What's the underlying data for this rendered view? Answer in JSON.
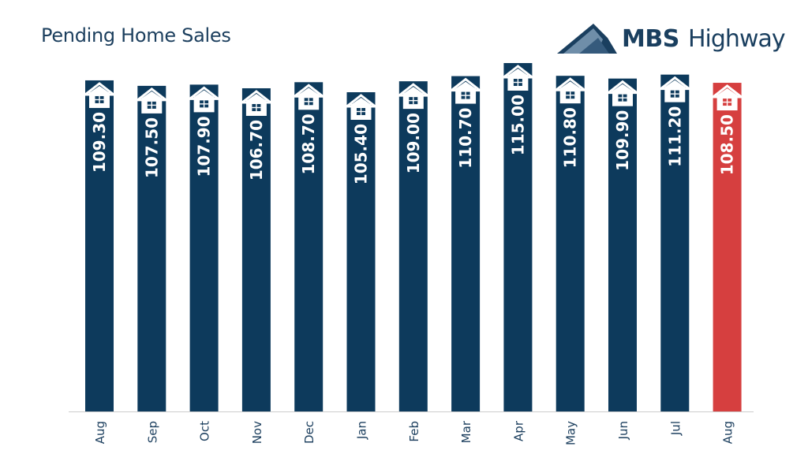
{
  "title": "Pending Home Sales",
  "brand": {
    "name_bold": "MBS",
    "name_regular": "Highway",
    "registered_mark": "®",
    "color": "#1a3f5f"
  },
  "colors": {
    "bar": "#0d3a5c",
    "bar_highlight": "#d63f3f",
    "axis": "#cccccc",
    "bar_label": "#ffffff",
    "tick_label": "#1c3f5e"
  },
  "chart_data": {
    "type": "bar",
    "categories": [
      "Aug",
      "Sep",
      "Oct",
      "Nov",
      "Dec",
      "Jan",
      "Feb",
      "Mar",
      "Apr",
      "May",
      "Jun",
      "Jul",
      "Aug"
    ],
    "values": [
      109.3,
      107.5,
      107.9,
      106.7,
      108.7,
      105.4,
      109.0,
      110.7,
      115.0,
      110.8,
      109.9,
      111.2,
      108.5
    ],
    "labels": [
      "109.30",
      "107.50",
      "107.90",
      "106.70",
      "108.70",
      "105.40",
      "109.00",
      "110.70",
      "115.00",
      "110.80",
      "109.90",
      "111.20",
      "108.50"
    ],
    "highlight_index": 12,
    "bar_icon": "house-icon",
    "xlabel": "",
    "ylabel": "",
    "grid": false,
    "legend": "none"
  }
}
